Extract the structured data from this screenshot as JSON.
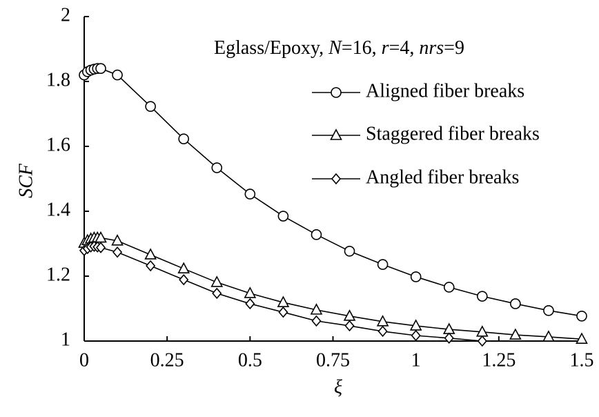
{
  "chart_data": {
    "type": "line",
    "annotation": [
      "Eglass/Epoxy, ",
      "N",
      "=16, ",
      "r",
      "=4, ",
      "nrs",
      "=9"
    ],
    "xlabel": "ξ",
    "ylabel": "SCF",
    "x": [
      0,
      0.01,
      0.02,
      0.03,
      0.04,
      0.05,
      0.1,
      0.2,
      0.3,
      0.4,
      0.5,
      0.6,
      0.7,
      0.8,
      0.9,
      1.0,
      1.1,
      1.2,
      1.3,
      1.4,
      1.5
    ],
    "series": [
      {
        "name": "Aligned fiber breaks",
        "marker": "circle",
        "color": "#000000",
        "values": [
          1.82,
          1.83,
          1.835,
          1.838,
          1.84,
          1.84,
          1.82,
          1.723,
          1.623,
          1.534,
          1.453,
          1.385,
          1.328,
          1.277,
          1.236,
          1.198,
          1.166,
          1.138,
          1.115,
          1.094,
          1.077
        ]
      },
      {
        "name": "Staggered fiber breaks",
        "marker": "triangle",
        "color": "#000000",
        "values": [
          1.302,
          1.31,
          1.315,
          1.318,
          1.318,
          1.318,
          1.309,
          1.266,
          1.223,
          1.181,
          1.147,
          1.119,
          1.096,
          1.077,
          1.06,
          1.047,
          1.036,
          1.028,
          1.019,
          1.013,
          1.006
        ]
      },
      {
        "name": "Angled fiber breaks",
        "marker": "diamond",
        "color": "#000000",
        "values": [
          1.279,
          1.285,
          1.29,
          1.292,
          1.29,
          1.288,
          1.274,
          1.232,
          1.189,
          1.147,
          1.115,
          1.089,
          1.062,
          1.047,
          1.03,
          1.017,
          1.009,
          1.0,
          null,
          null,
          null
        ]
      }
    ],
    "xlim": [
      0,
      1.5
    ],
    "ylim": [
      1,
      2
    ],
    "xticks": [
      0,
      0.25,
      0.5,
      0.75,
      1,
      1.25,
      1.5
    ],
    "yticks": [
      1,
      1.2,
      1.4,
      1.6,
      1.8,
      2
    ],
    "legend": "upper right"
  }
}
